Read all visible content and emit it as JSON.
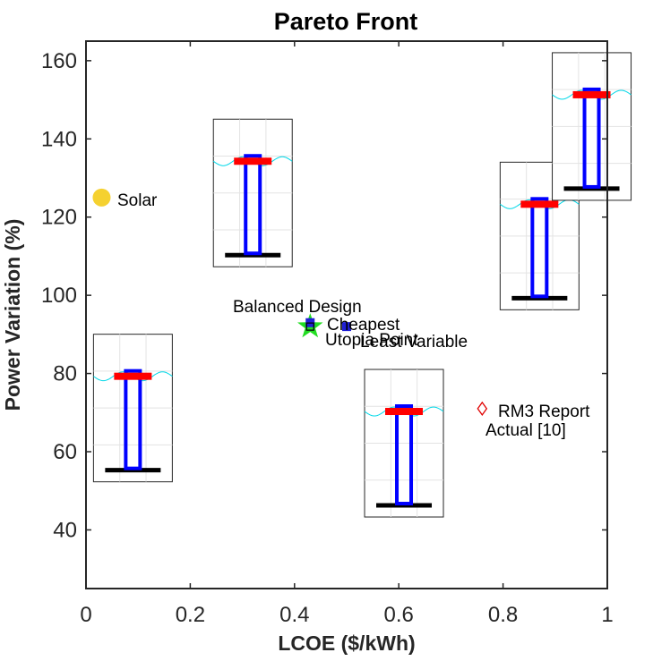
{
  "chart_data": {
    "type": "scatter",
    "title": "Pareto Front",
    "xlabel": "LCOE ($/kWh)",
    "ylabel": "Power Variation (%)",
    "xlim": [
      0,
      1
    ],
    "ylim": [
      25,
      165
    ],
    "xticks": [
      "0",
      "0.2",
      "0.4",
      "0.6",
      "0.8",
      "1"
    ],
    "yticks": [
      "40",
      "60",
      "80",
      "100",
      "120",
      "140",
      "160"
    ],
    "grid": false,
    "points": [
      {
        "label": "Solar",
        "x": 0.03,
        "y": 125,
        "marker": "circle",
        "color": "#f5d130"
      },
      {
        "label": "Balanced Design",
        "x": 0.43,
        "y": 92,
        "marker": "pentagram",
        "color": "#22dd22"
      },
      {
        "label": "Cheapest",
        "x": 0.43,
        "y": 93,
        "marker": "square",
        "color": "#1f1fd6"
      },
      {
        "label": "Utopia Point",
        "x": 0.43,
        "y": 92,
        "marker": "square-open",
        "color": "#000000"
      },
      {
        "label": "Least Variable",
        "x": 0.5,
        "y": 92,
        "marker": "square",
        "color": "#1f1fd6"
      },
      {
        "label": "RM3 Report Actual [10]",
        "x": 0.76,
        "y": 71,
        "marker": "diamond-open",
        "color": "#e00000"
      }
    ],
    "annotations": [
      {
        "text": "Solar"
      },
      {
        "text": "Balanced Design"
      },
      {
        "text": "Cheapest"
      },
      {
        "text": "Utopia Point"
      },
      {
        "text": "Least Variable"
      },
      {
        "text": "RM3 Report"
      },
      {
        "text": "Actual [10]"
      }
    ],
    "inset_glyphs": [
      {
        "x": 0.09,
        "y": 73
      },
      {
        "x": 0.32,
        "y": 128
      },
      {
        "x": 0.61,
        "y": 64
      },
      {
        "x": 0.87,
        "y": 117
      },
      {
        "x": 0.97,
        "y": 145
      }
    ],
    "colors": {
      "axis": "#262626",
      "wave": "#00d8e8",
      "float": "#ff0000",
      "spar": "#0000ff",
      "plate": "#000000"
    }
  }
}
